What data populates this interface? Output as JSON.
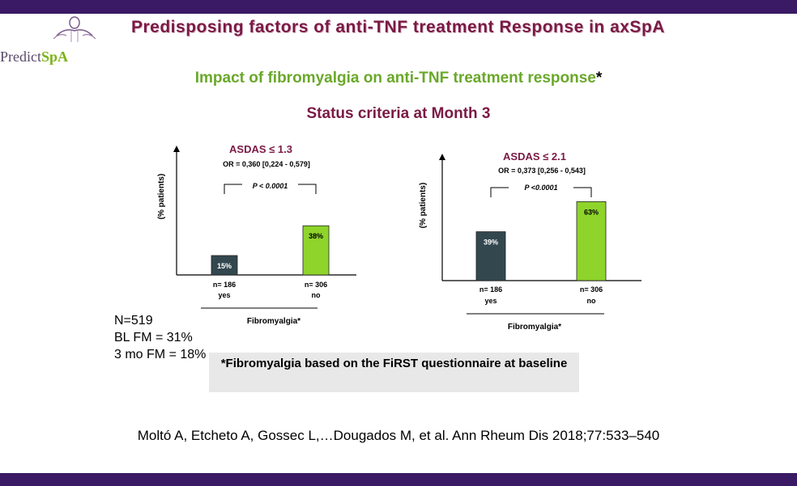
{
  "header": {
    "logo_text_a": "Predict",
    "logo_text_b": "SpA",
    "title": "Predisposing factors of anti-TNF treatment Response in axSpA"
  },
  "subtitle": "Impact of fibromyalgia on anti-TNF treatment response",
  "subtitle_star": "*",
  "status_title": "Status criteria at Month 3",
  "chart_data": [
    {
      "type": "bar",
      "title": "ASDAS ≤ 1.3",
      "or_text": "OR = 0,360 [0,224 - 0,579]",
      "p_text": "P < 0.0001",
      "ylabel": "(% patients)",
      "xlabel": "Fibromyalgia*",
      "categories": [
        "yes",
        "no"
      ],
      "n_labels": [
        "n= 186",
        "n= 306"
      ],
      "values": [
        15,
        38
      ],
      "value_labels": [
        "15%",
        "38%"
      ],
      "colors": [
        "#33474f",
        "#8ed42a"
      ],
      "ylim": [
        0,
        100
      ]
    },
    {
      "type": "bar",
      "title": "ASDAS  ≤ 2.1",
      "or_text": "OR = 0,373 [0,256 - 0,543]",
      "p_text": "P <0.0001",
      "ylabel": "(% patients)",
      "xlabel": "Fibromyalgia*",
      "categories": [
        "yes",
        "no"
      ],
      "n_labels": [
        "n= 186",
        "n= 306"
      ],
      "values": [
        39,
        63
      ],
      "value_labels": [
        "39%",
        "63%"
      ],
      "colors": [
        "#33474f",
        "#8ed42a"
      ],
      "ylim": [
        0,
        100
      ]
    }
  ],
  "notes": [
    "N=519",
    "BL FM = 31%",
    "3 mo FM = 18%"
  ],
  "footnote": "*Fibromyalgia based on the FiRST questionnaire at baseline",
  "citation": "Moltó A, Etcheto A, Gossec L,…Dougados M, et al. Ann Rheum Dis 2018;77:533–540"
}
